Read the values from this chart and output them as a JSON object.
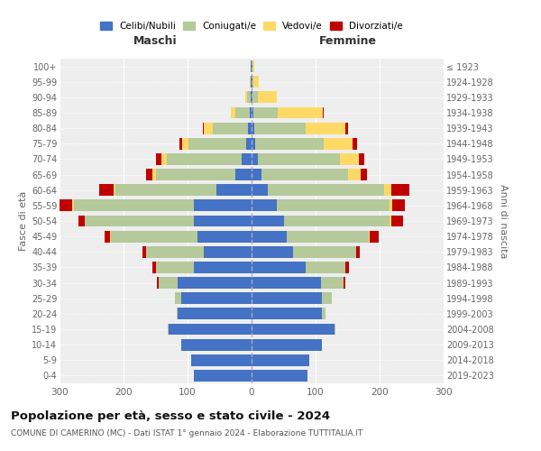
{
  "age_groups": [
    "0-4",
    "5-9",
    "10-14",
    "15-19",
    "20-24",
    "25-29",
    "30-34",
    "35-39",
    "40-44",
    "45-49",
    "50-54",
    "55-59",
    "60-64",
    "65-69",
    "70-74",
    "75-79",
    "80-84",
    "85-89",
    "90-94",
    "95-99",
    "100+"
  ],
  "birth_years": [
    "2019-2023",
    "2014-2018",
    "2009-2013",
    "2004-2008",
    "1999-2003",
    "1994-1998",
    "1989-1993",
    "1984-1988",
    "1979-1983",
    "1974-1978",
    "1969-1973",
    "1964-1968",
    "1959-1963",
    "1954-1958",
    "1949-1953",
    "1944-1948",
    "1939-1943",
    "1934-1938",
    "1929-1933",
    "1924-1928",
    "≤ 1923"
  ],
  "colors": {
    "celibe": "#4472c4",
    "coniugato": "#b5c99a",
    "vedovo": "#ffd966",
    "divorziato": "#c00000"
  },
  "maschi": {
    "celibe": [
      90,
      95,
      110,
      130,
      115,
      110,
      115,
      90,
      75,
      85,
      90,
      90,
      55,
      25,
      15,
      8,
      5,
      3,
      2,
      1,
      2
    ],
    "coniugato": [
      0,
      0,
      0,
      1,
      2,
      10,
      30,
      60,
      90,
      135,
      170,
      188,
      158,
      125,
      118,
      90,
      55,
      22,
      5,
      1,
      0
    ],
    "vedovo": [
      0,
      0,
      0,
      0,
      0,
      0,
      0,
      0,
      0,
      1,
      1,
      2,
      3,
      5,
      8,
      10,
      14,
      8,
      3,
      1,
      0
    ],
    "divorziato": [
      0,
      0,
      0,
      0,
      0,
      0,
      3,
      5,
      5,
      8,
      10,
      20,
      22,
      10,
      8,
      5,
      2,
      0,
      0,
      0,
      0
    ]
  },
  "femmine": {
    "nubile": [
      88,
      90,
      110,
      130,
      110,
      110,
      108,
      85,
      65,
      55,
      50,
      40,
      25,
      15,
      10,
      5,
      4,
      3,
      2,
      1,
      1
    ],
    "coniugata": [
      0,
      0,
      0,
      1,
      5,
      15,
      35,
      62,
      98,
      128,
      165,
      175,
      182,
      135,
      128,
      108,
      80,
      38,
      8,
      2,
      0
    ],
    "vedova": [
      0,
      0,
      0,
      0,
      0,
      0,
      0,
      0,
      1,
      2,
      3,
      5,
      12,
      20,
      30,
      45,
      62,
      70,
      30,
      8,
      3
    ],
    "divorziata": [
      0,
      0,
      0,
      0,
      0,
      0,
      3,
      5,
      5,
      14,
      18,
      20,
      28,
      10,
      8,
      7,
      5,
      1,
      0,
      0,
      0
    ]
  },
  "xlim": 300,
  "title": "Popolazione per età, sesso e stato civile - 2024",
  "subtitle": "COMUNE DI CAMERINO (MC) - Dati ISTAT 1° gennaio 2024 - Elaborazione TUTTITALIA.IT",
  "xlabel_left": "Maschi",
  "xlabel_right": "Femmine",
  "ylabel": "Fasce di età",
  "ylabel_right": "Anni di nascita",
  "bg_color": "#eeeeee",
  "grid_color": "#ffffff"
}
